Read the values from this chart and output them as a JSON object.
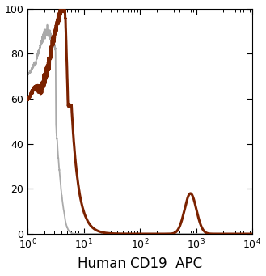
{
  "xlabel": "Human CD19  APC",
  "ylabel": "",
  "xlim": [
    1,
    10000
  ],
  "ylim": [
    0,
    100
  ],
  "yticks": [
    0,
    20,
    40,
    60,
    80,
    100
  ],
  "xticks": [
    1,
    10,
    100,
    1000,
    10000
  ],
  "xtick_labels": [
    "10$^0$",
    "10$^1$",
    "10$^2$",
    "10$^3$",
    "10$^4$"
  ],
  "gray_color": "#aaaaaa",
  "brown_color": "#7B2200",
  "linewidth_gray": 1.3,
  "linewidth_brown": 2.2,
  "background_color": "#ffffff",
  "xlabel_fontsize": 12,
  "ytick_fontsize": 9,
  "xtick_fontsize": 9,
  "gray_seed": 7,
  "brown_seed": 3
}
